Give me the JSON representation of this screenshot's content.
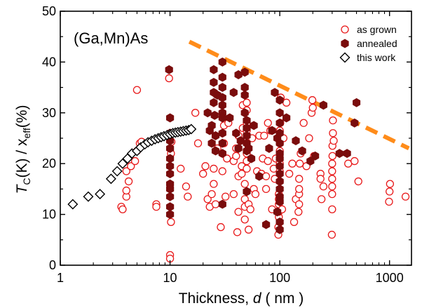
{
  "chart_data": {
    "type": "scatter",
    "annotation": "(Ga,Mn)As",
    "xlabel": {
      "main": "Thickness, ",
      "var": "d",
      "unit": " ( nm )"
    },
    "ylabel": {
      "t": "T",
      "c": "C",
      "mid": "(K) / x",
      "eff": "eff",
      "end": "(%)"
    },
    "xscale": "log",
    "xlim": [
      1,
      1585
    ],
    "ylim": [
      0,
      50
    ],
    "x_ticks": [
      1,
      10,
      100,
      1000
    ],
    "x_tick_labels": [
      "1",
      "10",
      "100",
      "1000"
    ],
    "y_ticks": [
      0,
      10,
      20,
      30,
      40,
      50
    ],
    "y_tick_labels": [
      "0",
      "10",
      "20",
      "30",
      "40",
      "50"
    ],
    "grid": false,
    "legend_position": "top-right",
    "colors": {
      "as_grown": "#e8191a",
      "annealed": "#7a0c0c",
      "this_work": "#000000",
      "trend": "#ff8c1a"
    },
    "series": [
      {
        "name": "as grown",
        "marker": "open-circle",
        "points": [
          [
            3.6,
            11.5
          ],
          [
            3.7,
            11.0
          ],
          [
            4.0,
            13.5
          ],
          [
            4.0,
            14.7
          ],
          [
            4.2,
            16.5
          ],
          [
            4.0,
            18.5
          ],
          [
            4.4,
            19.5
          ],
          [
            4.8,
            20.5
          ],
          [
            5.0,
            22.5
          ],
          [
            5.3,
            24.0
          ],
          [
            5.5,
            24.3
          ],
          [
            5.0,
            34.5
          ],
          [
            7.5,
            12.0
          ],
          [
            7.5,
            11.5
          ],
          [
            9.8,
            36.8
          ],
          [
            10.2,
            8.5
          ],
          [
            10.0,
            2.0
          ],
          [
            10.0,
            1.3
          ],
          [
            10.2,
            22.0
          ],
          [
            10.3,
            24.3
          ],
          [
            12.5,
            19.0
          ],
          [
            14.0,
            15.5
          ],
          [
            14.5,
            13.5
          ],
          [
            17.0,
            30.0
          ],
          [
            18.0,
            24.0
          ],
          [
            20.0,
            18.0
          ],
          [
            21.0,
            19.5
          ],
          [
            22.0,
            13.0
          ],
          [
            23.0,
            11.5
          ],
          [
            24.0,
            14.0
          ],
          [
            25.0,
            16.0
          ],
          [
            25.0,
            19.0
          ],
          [
            26.0,
            12.0
          ],
          [
            27.0,
            23.0
          ],
          [
            29.0,
            7.5
          ],
          [
            30.0,
            18.5
          ],
          [
            30.0,
            22.0
          ],
          [
            31.0,
            24.0
          ],
          [
            31.0,
            27.5
          ],
          [
            32.0,
            13.5
          ],
          [
            33.0,
            21.0
          ],
          [
            34.0,
            28.0
          ],
          [
            38.0,
            14.0
          ],
          [
            38.0,
            20.5
          ],
          [
            40.0,
            21.5
          ],
          [
            40.0,
            23.0
          ],
          [
            41.0,
            6.5
          ],
          [
            42.0,
            10.5
          ],
          [
            42.0,
            17.5
          ],
          [
            42.0,
            25.5
          ],
          [
            45.0,
            18.0
          ],
          [
            45.0,
            19.5
          ],
          [
            46.0,
            27.0
          ],
          [
            46.0,
            31.5
          ],
          [
            48.0,
            9.0
          ],
          [
            48.0,
            11.5
          ],
          [
            48.0,
            13.0
          ],
          [
            48.0,
            16.0
          ],
          [
            50.0,
            19.0
          ],
          [
            50.0,
            20.5
          ],
          [
            50.0,
            22.0
          ],
          [
            50.0,
            26.5
          ],
          [
            50.0,
            28.0
          ],
          [
            50.0,
            30.5
          ],
          [
            50.0,
            32.0
          ],
          [
            52.0,
            7.0
          ],
          [
            52.0,
            12.0
          ],
          [
            54.0,
            11.0
          ],
          [
            55.0,
            21.0
          ],
          [
            56.0,
            25.0
          ],
          [
            58.0,
            15.0
          ],
          [
            60.0,
            14.0
          ],
          [
            62.0,
            18.5
          ],
          [
            65.0,
            25.5
          ],
          [
            68.0,
            18.0
          ],
          [
            70.0,
            21.0
          ],
          [
            72.0,
            25.5
          ],
          [
            75.0,
            15.0
          ],
          [
            75.0,
            17.5
          ],
          [
            78.0,
            28.0
          ],
          [
            78.0,
            20.5
          ],
          [
            82.0,
            26.5
          ],
          [
            85.0,
            11.0
          ],
          [
            88.0,
            19.0
          ],
          [
            90.0,
            17.0
          ],
          [
            92.0,
            21.0
          ],
          [
            97.0,
            6.0
          ],
          [
            97.0,
            7.5
          ],
          [
            98.0,
            9.5
          ],
          [
            98.0,
            10.5
          ],
          [
            98.0,
            12.0
          ],
          [
            98.0,
            13.0
          ],
          [
            98.0,
            14.0
          ],
          [
            100.0,
            16.5
          ],
          [
            100.0,
            18.5
          ],
          [
            100.0,
            20.0
          ],
          [
            100.0,
            22.5
          ],
          [
            100.0,
            24.0
          ],
          [
            100.0,
            26.5
          ],
          [
            101.0,
            28.0
          ],
          [
            102.0,
            33.0
          ],
          [
            105.0,
            11.0
          ],
          [
            108.0,
            25.0
          ],
          [
            115.0,
            32.0
          ],
          [
            122.0,
            18.0
          ],
          [
            130.0,
            20.0
          ],
          [
            135.0,
            8.5
          ],
          [
            140.0,
            13.0
          ],
          [
            148.0,
            10.5
          ],
          [
            150.0,
            12.0
          ],
          [
            150.0,
            14.0
          ],
          [
            150.0,
            15.0
          ],
          [
            150.0,
            17.0
          ],
          [
            152.0,
            20.0
          ],
          [
            155.0,
            22.0
          ],
          [
            165.0,
            28.0
          ],
          [
            175.0,
            19.5
          ],
          [
            185.0,
            25.0
          ],
          [
            195.0,
            30.0
          ],
          [
            198.0,
            32.5
          ],
          [
            200.0,
            31.0
          ],
          [
            205.0,
            21.5
          ],
          [
            235.0,
            18.0
          ],
          [
            235.0,
            17.0
          ],
          [
            240.0,
            13.0
          ],
          [
            250.0,
            15.5
          ],
          [
            298.0,
            6.0
          ],
          [
            300.0,
            11.0
          ],
          [
            300.0,
            14.0
          ],
          [
            300.0,
            15.5
          ],
          [
            300.0,
            17.0
          ],
          [
            300.0,
            18.5
          ],
          [
            300.0,
            20.0
          ],
          [
            302.0,
            21.5
          ],
          [
            302.0,
            23.5
          ],
          [
            305.0,
            26.0
          ],
          [
            305.0,
            28.5
          ],
          [
            310.0,
            24.5
          ],
          [
            420.0,
            20.0
          ],
          [
            480.0,
            20.5
          ],
          [
            520.0,
            16.5
          ],
          [
            990.0,
            12.5
          ],
          [
            1000.0,
            14.5
          ],
          [
            1010.0,
            16.0
          ],
          [
            1400.0,
            13.5
          ]
        ]
      },
      {
        "name": "annealed",
        "marker": "filled-hexagon",
        "points": [
          [
            9.8,
            38.5
          ],
          [
            10.0,
            29.0
          ],
          [
            10.0,
            26.0
          ],
          [
            10.0,
            23.0
          ],
          [
            10.0,
            21.0
          ],
          [
            10.0,
            19.5
          ],
          [
            10.0,
            18.0
          ],
          [
            10.0,
            16.0
          ],
          [
            10.0,
            15.0
          ],
          [
            10.0,
            13.5
          ],
          [
            10.0,
            11.5
          ],
          [
            10.0,
            10.0
          ],
          [
            10.0,
            24.5
          ],
          [
            22.0,
            30.0
          ],
          [
            23.0,
            26.5
          ],
          [
            24.0,
            27.5
          ],
          [
            24.0,
            24.0
          ],
          [
            25.0,
            38.5
          ],
          [
            25.0,
            36.0
          ],
          [
            25.0,
            34.0
          ],
          [
            25.0,
            32.0
          ],
          [
            25.5,
            29.5
          ],
          [
            26.0,
            25.5
          ],
          [
            26.0,
            22.5
          ],
          [
            27.0,
            33.5
          ],
          [
            30.0,
            40.0
          ],
          [
            30.0,
            37.0
          ],
          [
            30.0,
            35.0
          ],
          [
            30.0,
            33.0
          ],
          [
            30.0,
            31.5
          ],
          [
            30.0,
            30.0
          ],
          [
            30.0,
            29.0
          ],
          [
            30.0,
            26.0
          ],
          [
            30.0,
            24.0
          ],
          [
            30.0,
            22.0
          ],
          [
            30.0,
            12.0
          ],
          [
            35.0,
            29.0
          ],
          [
            38.0,
            34.0
          ],
          [
            40.0,
            26.0
          ],
          [
            42.0,
            23.0
          ],
          [
            42.0,
            37.5
          ],
          [
            44.0,
            24.5
          ],
          [
            48.0,
            38.0
          ],
          [
            48.0,
            35.0
          ],
          [
            48.0,
            33.5
          ],
          [
            48.0,
            30.0
          ],
          [
            50.0,
            28.5
          ],
          [
            50.0,
            27.0
          ],
          [
            50.0,
            25.5
          ],
          [
            50.0,
            24.0
          ],
          [
            50.0,
            22.5
          ],
          [
            50.0,
            14.5
          ],
          [
            52.0,
            23.0
          ],
          [
            55.0,
            21.0
          ],
          [
            58.0,
            27.5
          ],
          [
            65.0,
            17.5
          ],
          [
            75.0,
            8.0
          ],
          [
            80.0,
            23.0
          ],
          [
            85.0,
            26.5
          ],
          [
            90.0,
            34.0
          ],
          [
            95.0,
            25.0
          ],
          [
            95.0,
            10.5
          ],
          [
            100.0,
            32.5
          ],
          [
            100.0,
            30.0
          ],
          [
            100.0,
            28.0
          ],
          [
            100.0,
            26.0
          ],
          [
            100.0,
            24.0
          ],
          [
            100.0,
            22.0
          ],
          [
            100.0,
            21.0
          ],
          [
            100.0,
            19.5
          ],
          [
            100.0,
            18.0
          ],
          [
            100.0,
            16.5
          ],
          [
            100.0,
            15.0
          ],
          [
            100.0,
            13.5
          ],
          [
            100.0,
            12.5
          ],
          [
            100.0,
            8.5
          ],
          [
            100.0,
            7.0
          ],
          [
            115.0,
            29.0
          ],
          [
            140.0,
            24.5
          ],
          [
            160.0,
            22.5
          ],
          [
            190.0,
            20.5
          ],
          [
            210.0,
            21.5
          ],
          [
            250.0,
            31.5
          ],
          [
            350.0,
            22.0
          ],
          [
            410.0,
            22.0
          ],
          [
            480.0,
            28.0
          ],
          [
            500.0,
            32.0
          ]
        ]
      },
      {
        "name": "this work",
        "marker": "open-diamond",
        "points": [
          [
            1.3,
            12.0
          ],
          [
            1.8,
            13.5
          ],
          [
            2.3,
            14.0
          ],
          [
            2.9,
            17.0
          ],
          [
            3.3,
            18.5
          ],
          [
            3.7,
            20.0
          ],
          [
            4.1,
            21.0
          ],
          [
            4.5,
            22.0
          ],
          [
            5.0,
            22.5
          ],
          [
            5.4,
            23.2
          ],
          [
            5.9,
            23.8
          ],
          [
            6.3,
            24.2
          ],
          [
            6.8,
            24.5
          ],
          [
            7.3,
            24.8
          ],
          [
            7.8,
            25.0
          ],
          [
            8.3,
            25.2
          ],
          [
            8.8,
            25.4
          ],
          [
            9.4,
            25.6
          ],
          [
            10.0,
            25.8
          ],
          [
            10.6,
            26.0
          ],
          [
            11.2,
            26.1
          ],
          [
            11.8,
            26.2
          ],
          [
            12.5,
            26.3
          ],
          [
            13.2,
            26.4
          ],
          [
            14.0,
            26.5
          ],
          [
            14.8,
            26.6
          ],
          [
            15.6,
            26.8
          ]
        ]
      }
    ],
    "trend_line": {
      "style": "dashed",
      "x": [
        15,
        1500
      ],
      "y": [
        44,
        23
      ]
    }
  }
}
